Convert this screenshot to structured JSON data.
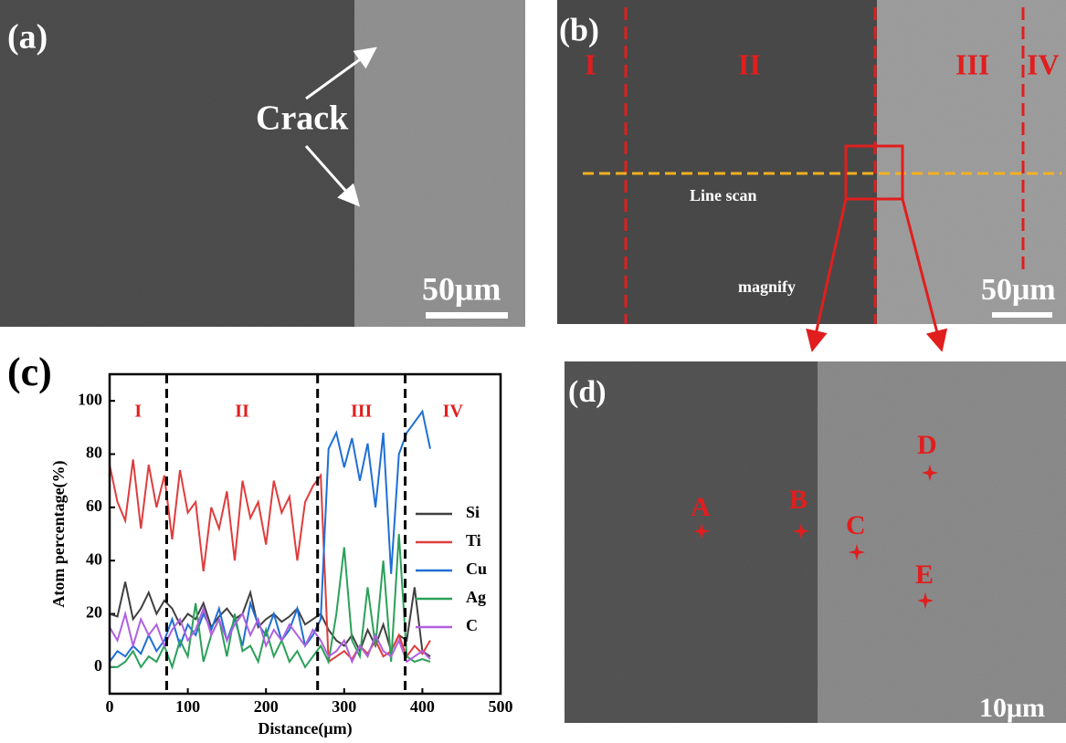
{
  "panel_a": {
    "label": "(a)",
    "annotation": "Crack",
    "scale_bar": "50μm"
  },
  "panel_b": {
    "label": "(b)",
    "regions": [
      "I",
      "II",
      "III",
      "IV"
    ],
    "line_label": "Line scan",
    "magnify_label": "magnify",
    "scale_bar": "50μm"
  },
  "panel_d": {
    "label": "(d)",
    "points": [
      "A",
      "B",
      "C",
      "D",
      "E"
    ],
    "scale_bar": "10μm"
  },
  "chart_data": {
    "type": "line",
    "panel_label": "(c)",
    "x_label": "Distance(μm)",
    "y_label": "Atom percentage(%)",
    "x": [
      0,
      10,
      20,
      30,
      40,
      50,
      60,
      70,
      80,
      90,
      100,
      110,
      120,
      130,
      140,
      150,
      160,
      170,
      180,
      190,
      200,
      210,
      220,
      230,
      240,
      250,
      260,
      270,
      280,
      290,
      300,
      310,
      320,
      330,
      340,
      350,
      360,
      370,
      380,
      390,
      400,
      410
    ],
    "series": [
      {
        "name": "Si",
        "color": "#404040",
        "values": [
          20,
          19,
          32,
          18,
          22,
          28,
          20,
          25,
          22,
          16,
          20,
          18,
          24,
          15,
          19,
          22,
          18,
          20,
          28,
          15,
          18,
          20,
          17,
          19,
          22,
          16,
          18,
          20,
          14,
          10,
          8,
          12,
          6,
          14,
          8,
          16,
          6,
          12,
          10,
          30,
          6,
          4
        ]
      },
      {
        "name": "Ti",
        "color": "#e03c3c",
        "values": [
          76,
          62,
          55,
          78,
          52,
          76,
          60,
          72,
          48,
          74,
          58,
          62,
          36,
          60,
          52,
          66,
          40,
          70,
          56,
          62,
          46,
          70,
          58,
          64,
          40,
          62,
          68,
          72,
          2,
          4,
          6,
          3,
          8,
          5,
          10,
          4,
          6,
          12,
          4,
          8,
          5,
          10
        ]
      },
      {
        "name": "Cu",
        "color": "#1f6fd6",
        "values": [
          2,
          6,
          4,
          8,
          5,
          12,
          6,
          10,
          18,
          8,
          16,
          12,
          20,
          14,
          22,
          10,
          18,
          8,
          24,
          16,
          12,
          20,
          10,
          14,
          22,
          8,
          12,
          18,
          82,
          88,
          75,
          86,
          70,
          84,
          60,
          88,
          35,
          80,
          88,
          92,
          96,
          82
        ]
      },
      {
        "name": "Ag",
        "color": "#2ca05a",
        "values": [
          0,
          0,
          2,
          6,
          0,
          4,
          2,
          8,
          0,
          10,
          4,
          24,
          2,
          12,
          18,
          4,
          20,
          6,
          8,
          2,
          14,
          4,
          10,
          2,
          6,
          0,
          4,
          8,
          2,
          20,
          45,
          10,
          4,
          30,
          8,
          40,
          2,
          50,
          4,
          2,
          3,
          2
        ]
      },
      {
        "name": "C",
        "color": "#b060e0",
        "values": [
          15,
          10,
          20,
          8,
          18,
          12,
          16,
          8,
          14,
          18,
          10,
          14,
          22,
          12,
          18,
          10,
          16,
          20,
          12,
          18,
          8,
          14,
          10,
          16,
          12,
          8,
          14,
          10,
          4,
          6,
          10,
          2,
          8,
          4,
          12,
          6,
          4,
          10,
          2,
          4,
          6,
          3
        ]
      }
    ],
    "region_boundaries": [
      73,
      266,
      378
    ],
    "region_labels": [
      "I",
      "II",
      "III",
      "IV"
    ],
    "xlim": [
      0,
      500
    ],
    "ylim": [
      -10,
      110
    ],
    "xticks": [
      0,
      100,
      200,
      300,
      400,
      500
    ],
    "yticks": [
      0,
      20,
      40,
      60,
      80,
      100
    ]
  }
}
